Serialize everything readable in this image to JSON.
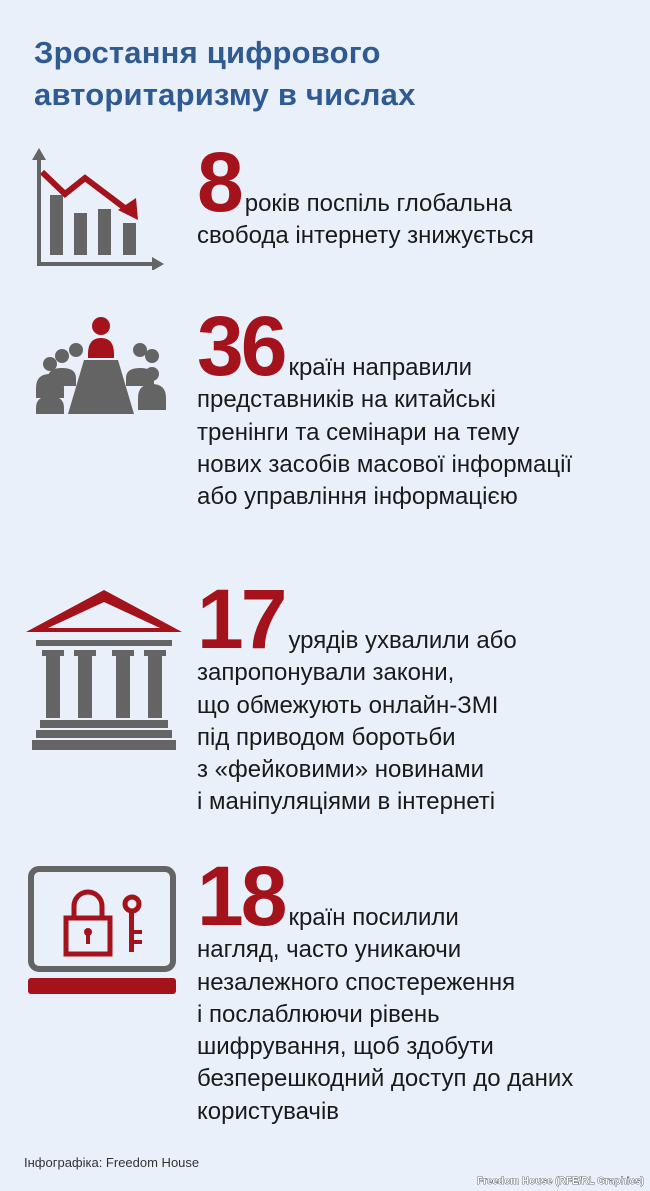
{
  "title": {
    "line1": "Зростання цифрового",
    "line2": "авторитаризму в числах"
  },
  "colors": {
    "title": "#2f5b92",
    "accent": "#a4121b",
    "icon_gray": "#646464",
    "background": "#eaf0fa"
  },
  "stats": [
    {
      "icon": "declining-chart-icon",
      "number": "8",
      "lines": [
        "років поспіль глобальна",
        "свобода інтернету знижується"
      ]
    },
    {
      "icon": "meeting-people-icon",
      "number": "36",
      "lines": [
        "країн направили",
        "представників на китайські",
        "тренінги та семінари на тему",
        "нових засобів масової інформації",
        "або управління інформацією"
      ]
    },
    {
      "icon": "government-building-icon",
      "number": "17",
      "lines": [
        "урядів ухвалили або",
        "запропонували закони,",
        "що обмежують онлайн-ЗМІ",
        "під приводом боротьби",
        "з «фейковими» новинами",
        "і маніпуляціями в інтернеті"
      ]
    },
    {
      "icon": "laptop-lock-key-icon",
      "number": "18",
      "lines": [
        "країн посилили",
        "нагляд, часто уникаючи",
        "незалежного спостереження",
        "і послаблюючи рівень",
        "шифрування, щоб здобути",
        "безперешкодний доступ до даних",
        "користувачів"
      ]
    }
  ],
  "footer": {
    "credit": "Інфографіка: Freedom House",
    "source": "Freedom House (RFE/RL Graphics)"
  }
}
